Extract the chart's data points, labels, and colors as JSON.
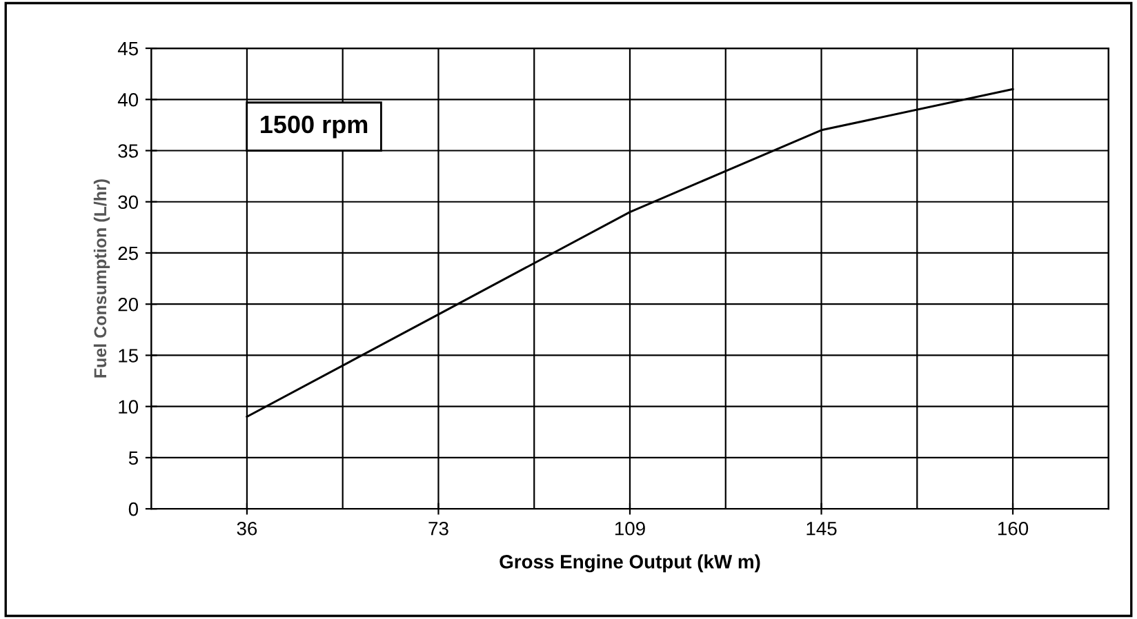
{
  "chart_data": {
    "type": "line",
    "xlabel": "Gross Engine Output (kW m)",
    "ylabel": "Fuel Consumption (L/hr)",
    "categories": [
      "36",
      "73",
      "109",
      "145",
      "160"
    ],
    "series": [
      {
        "color": "#000000",
        "values": [
          9,
          19,
          29,
          37,
          41
        ]
      }
    ],
    "ylim": [
      0,
      45
    ],
    "yticks": [
      0,
      5,
      10,
      15,
      20,
      25,
      30,
      35,
      40,
      45
    ],
    "grid": true,
    "marker": "none",
    "line_style": "solid",
    "annotations": [
      "1500 rpm"
    ]
  }
}
